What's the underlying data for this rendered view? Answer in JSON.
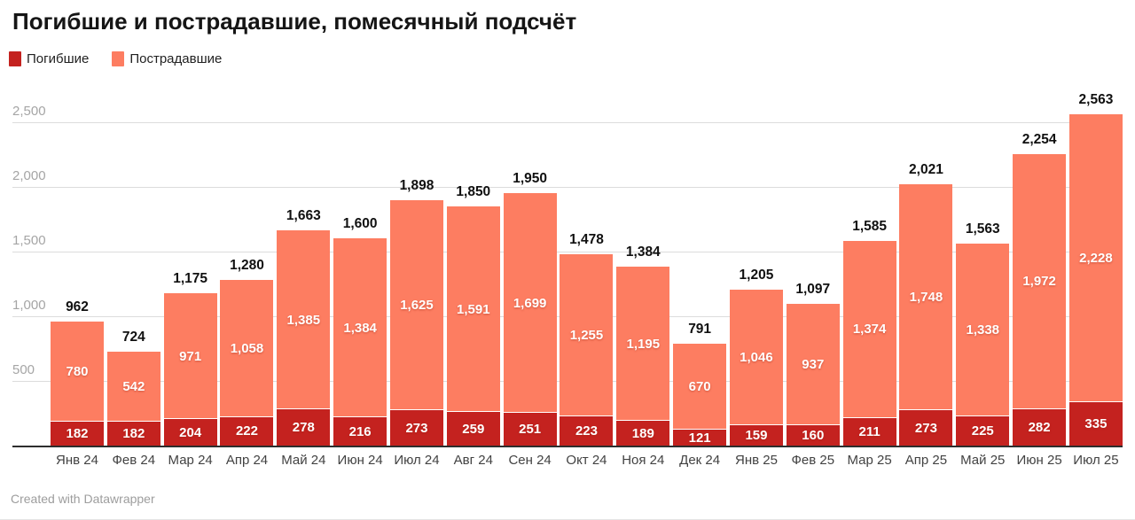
{
  "title": "Погибшие и пострадавшие, помесячный подсчёт",
  "footer": "Created with Datawrapper",
  "legend": [
    {
      "label": "Погибшие",
      "color": "#c4221f"
    },
    {
      "label": "Пострадавшие",
      "color": "#fd7d61"
    }
  ],
  "chart_data": {
    "type": "bar",
    "stacked": true,
    "title": "Погибшие и пострадавшие, помесячный подсчёт",
    "xlabel": "",
    "ylabel": "",
    "ylim": [
      0,
      2600
    ],
    "y_ticks": [
      500,
      1000,
      1500,
      2000,
      2500
    ],
    "grid": true,
    "legend_position": "top-left",
    "categories": [
      "Янв 24",
      "Фев 24",
      "Мар 24",
      "Апр 24",
      "Май 24",
      "Июн 24",
      "Июл 24",
      "Авг 24",
      "Сен 24",
      "Окт 24",
      "Ноя 24",
      "Дек 24",
      "Янв 25",
      "Фев 25",
      "Мар 25",
      "Апр 25",
      "Май 25",
      "Июн 25",
      "Июл 25"
    ],
    "series": [
      {
        "name": "Погибшие",
        "color": "#c4221f",
        "values": [
          182,
          182,
          204,
          222,
          278,
          216,
          273,
          259,
          251,
          223,
          189,
          121,
          159,
          160,
          211,
          273,
          225,
          282,
          335
        ]
      },
      {
        "name": "Пострадавшие",
        "color": "#fd7d61",
        "values": [
          780,
          542,
          971,
          1058,
          1385,
          1384,
          1625,
          1591,
          1699,
          1255,
          1195,
          670,
          1046,
          937,
          1374,
          1748,
          1338,
          1972,
          2228
        ]
      }
    ],
    "totals": [
      962,
      724,
      1175,
      1280,
      1663,
      1600,
      1898,
      1850,
      1950,
      1478,
      1384,
      791,
      1205,
      1097,
      1585,
      2021,
      1563,
      2254,
      2563
    ]
  }
}
